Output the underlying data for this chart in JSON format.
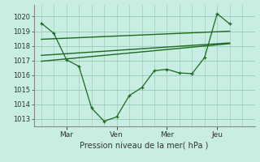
{
  "bg_color": "#c8eee4",
  "line_color": "#1a6b1a",
  "grid_color": "#a0ccbb",
  "xlabel": "Pression niveau de la mer( hPa )",
  "ylim": [
    1012.5,
    1020.8
  ],
  "yticks": [
    1013,
    1014,
    1015,
    1016,
    1017,
    1018,
    1019,
    1020
  ],
  "xtick_labels": [
    "Mar",
    "Ven",
    "Mer",
    "Jeu"
  ],
  "xtick_pos": [
    1,
    3,
    5,
    7
  ],
  "xlim": [
    -0.3,
    8.5
  ],
  "series_x": [
    0,
    0.5,
    1,
    1.5,
    2,
    2.5,
    3,
    3.5,
    4,
    4.5,
    5,
    5.5,
    6,
    6.5,
    7,
    7.5
  ],
  "series_y": [
    1019.55,
    1018.85,
    1017.05,
    1016.6,
    1013.75,
    1012.85,
    1013.15,
    1014.6,
    1015.15,
    1016.3,
    1016.4,
    1016.15,
    1016.1,
    1017.2,
    1020.2,
    1019.5
  ],
  "trend1_x": [
    0,
    7.5
  ],
  "trend1_y": [
    1017.35,
    1018.2
  ],
  "trend2_x": [
    0,
    7.5
  ],
  "trend2_y": [
    1018.45,
    1019.0
  ],
  "trend3_x": [
    0,
    7.5
  ],
  "trend3_y": [
    1016.95,
    1018.15
  ]
}
